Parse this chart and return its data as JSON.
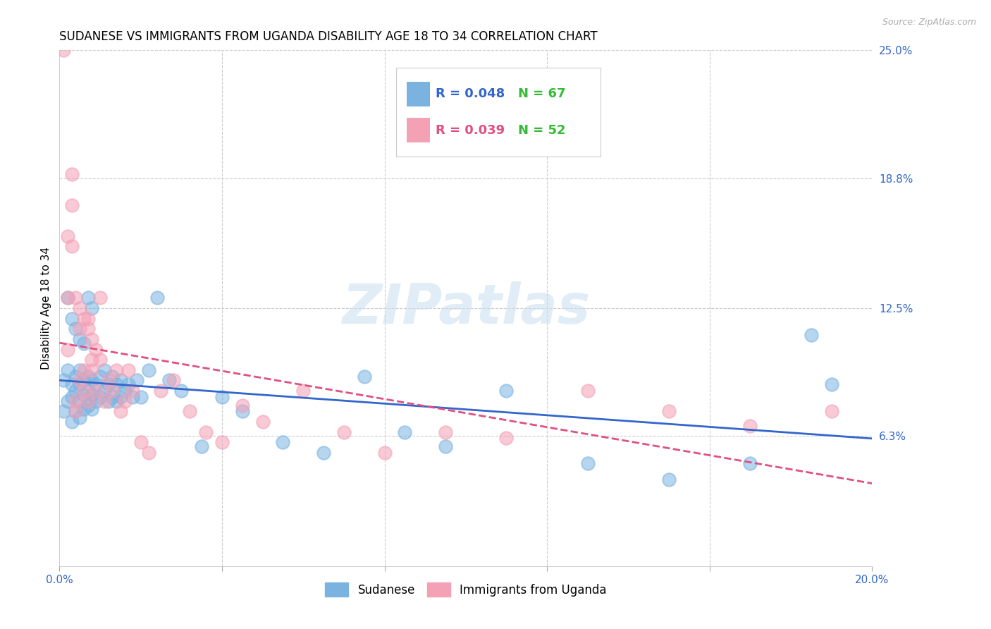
{
  "title": "SUDANESE VS IMMIGRANTS FROM UGANDA DISABILITY AGE 18 TO 34 CORRELATION CHART",
  "source": "Source: ZipAtlas.com",
  "ylabel": "Disability Age 18 to 34",
  "xlim": [
    0.0,
    0.2
  ],
  "ylim": [
    0.0,
    0.25
  ],
  "xticks": [
    0.0,
    0.04,
    0.08,
    0.12,
    0.16,
    0.2
  ],
  "xtick_labels": [
    "0.0%",
    "",
    "",
    "",
    "",
    "20.0%"
  ],
  "ytick_labels_right": [
    "25.0%",
    "18.8%",
    "12.5%",
    "6.3%"
  ],
  "ytick_vals_right": [
    0.25,
    0.188,
    0.125,
    0.063
  ],
  "grid_color": "#cccccc",
  "background_color": "#ffffff",
  "sudanese_color": "#7ab3e0",
  "uganda_color": "#f4a0b5",
  "sudanese_line_color": "#3366cc",
  "uganda_line_color": "#e05080",
  "legend_R_sudanese": "R = 0.048",
  "legend_N_sudanese": "N = 67",
  "legend_R_uganda": "R = 0.039",
  "legend_N_uganda": "N = 52",
  "N_color": "#33bb33",
  "watermark": "ZIPatlas",
  "sudanese_x": [
    0.001,
    0.001,
    0.002,
    0.002,
    0.003,
    0.003,
    0.003,
    0.004,
    0.004,
    0.004,
    0.005,
    0.005,
    0.005,
    0.005,
    0.006,
    0.006,
    0.006,
    0.007,
    0.007,
    0.007,
    0.008,
    0.008,
    0.008,
    0.009,
    0.009,
    0.01,
    0.01,
    0.011,
    0.011,
    0.012,
    0.012,
    0.013,
    0.013,
    0.014,
    0.014,
    0.015,
    0.015,
    0.016,
    0.017,
    0.018,
    0.019,
    0.02,
    0.022,
    0.024,
    0.027,
    0.03,
    0.035,
    0.04,
    0.045,
    0.055,
    0.065,
    0.075,
    0.085,
    0.095,
    0.11,
    0.13,
    0.15,
    0.17,
    0.185,
    0.19,
    0.002,
    0.003,
    0.004,
    0.005,
    0.006,
    0.007,
    0.008
  ],
  "sudanese_y": [
    0.09,
    0.075,
    0.095,
    0.08,
    0.088,
    0.082,
    0.07,
    0.092,
    0.085,
    0.075,
    0.095,
    0.088,
    0.08,
    0.072,
    0.09,
    0.083,
    0.076,
    0.092,
    0.085,
    0.078,
    0.09,
    0.083,
    0.076,
    0.088,
    0.08,
    0.092,
    0.082,
    0.095,
    0.085,
    0.088,
    0.08,
    0.092,
    0.082,
    0.088,
    0.08,
    0.09,
    0.082,
    0.085,
    0.088,
    0.082,
    0.09,
    0.082,
    0.095,
    0.13,
    0.09,
    0.085,
    0.058,
    0.082,
    0.075,
    0.06,
    0.055,
    0.092,
    0.065,
    0.058,
    0.085,
    0.05,
    0.042,
    0.05,
    0.112,
    0.088,
    0.13,
    0.12,
    0.115,
    0.11,
    0.108,
    0.13,
    0.125
  ],
  "uganda_x": [
    0.001,
    0.002,
    0.002,
    0.003,
    0.003,
    0.004,
    0.004,
    0.005,
    0.005,
    0.006,
    0.006,
    0.007,
    0.007,
    0.008,
    0.008,
    0.009,
    0.01,
    0.01,
    0.011,
    0.012,
    0.013,
    0.014,
    0.015,
    0.016,
    0.017,
    0.018,
    0.02,
    0.022,
    0.025,
    0.028,
    0.032,
    0.036,
    0.04,
    0.045,
    0.05,
    0.06,
    0.07,
    0.08,
    0.095,
    0.11,
    0.13,
    0.15,
    0.17,
    0.19,
    0.002,
    0.003,
    0.004,
    0.005,
    0.006,
    0.007,
    0.008,
    0.009
  ],
  "uganda_y": [
    0.25,
    0.13,
    0.105,
    0.19,
    0.175,
    0.08,
    0.075,
    0.115,
    0.09,
    0.095,
    0.085,
    0.12,
    0.08,
    0.1,
    0.095,
    0.085,
    0.13,
    0.1,
    0.08,
    0.09,
    0.085,
    0.095,
    0.075,
    0.08,
    0.095,
    0.085,
    0.06,
    0.055,
    0.085,
    0.09,
    0.075,
    0.065,
    0.06,
    0.078,
    0.07,
    0.085,
    0.065,
    0.055,
    0.065,
    0.062,
    0.085,
    0.075,
    0.068,
    0.075,
    0.16,
    0.155,
    0.13,
    0.125,
    0.12,
    0.115,
    0.11,
    0.105
  ]
}
